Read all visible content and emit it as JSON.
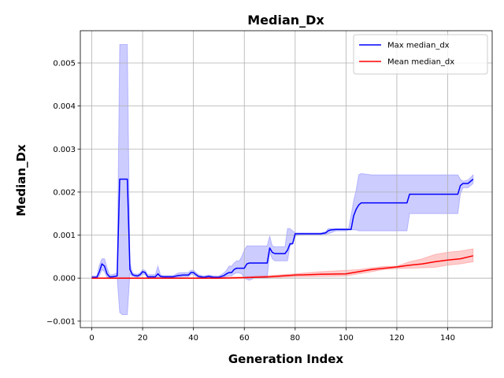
{
  "chart_data": {
    "type": "line",
    "title": "Median_Dx",
    "xlabel": "Generation Index",
    "ylabel": "Median_Dx",
    "xlim": [
      -4.5,
      157.5
    ],
    "ylim": [
      -0.00115,
      0.00575
    ],
    "xticks": [
      0,
      20,
      40,
      60,
      80,
      100,
      120,
      140
    ],
    "xtick_labels": [
      "0",
      "20",
      "40",
      "60",
      "80",
      "100",
      "120",
      "140"
    ],
    "yticks": [
      -0.001,
      0.0,
      0.001,
      0.002,
      0.003,
      0.004,
      0.005
    ],
    "ytick_labels": [
      "−0.001",
      "0.000",
      "0.001",
      "0.002",
      "0.003",
      "0.004",
      "0.005"
    ],
    "grid": true,
    "legend_position": "upper right",
    "series": [
      {
        "name": "Max median_dx",
        "color": "#0000ff",
        "band_color": "#0000ff",
        "x": [
          0,
          2,
          3,
          4,
          5,
          6,
          7,
          8,
          9,
          10,
          11,
          12,
          13,
          14,
          15,
          16,
          17,
          18,
          19,
          20,
          21,
          22,
          23,
          24,
          25,
          26,
          27,
          28,
          29,
          30,
          32,
          34,
          36,
          38,
          39,
          40,
          41,
          42,
          44,
          46,
          48,
          50,
          52,
          53,
          54,
          55,
          56,
          57,
          58,
          59,
          60,
          61,
          62,
          64,
          66,
          68,
          69,
          70,
          71,
          72,
          74,
          76,
          77,
          78,
          79,
          80,
          82,
          85,
          88,
          90,
          92,
          93,
          94,
          96,
          98,
          100,
          101,
          102,
          103,
          104,
          105,
          106,
          110,
          115,
          120,
          123,
          124,
          125,
          126,
          130,
          135,
          140,
          144,
          145,
          146,
          148,
          150
        ],
        "y": [
          2e-05,
          2e-05,
          0.00015,
          0.00033,
          0.00028,
          0.0001,
          3e-05,
          3e-05,
          4e-05,
          5e-05,
          0.0023,
          0.0023,
          0.0023,
          0.0023,
          0.0002,
          8e-05,
          6e-05,
          5e-05,
          8e-05,
          0.00015,
          0.00013,
          3e-05,
          3e-05,
          3e-05,
          3e-05,
          0.0001,
          4e-05,
          3e-05,
          3e-05,
          3e-05,
          3e-05,
          6e-05,
          7e-05,
          7e-05,
          0.00013,
          0.00013,
          8e-05,
          4e-05,
          2e-05,
          4e-05,
          2e-05,
          2e-05,
          6e-05,
          0.0001,
          0.00013,
          0.00013,
          0.0002,
          0.00023,
          0.00023,
          0.00023,
          0.00023,
          0.00033,
          0.00035,
          0.00035,
          0.00035,
          0.00035,
          0.00035,
          0.0007,
          0.0006,
          0.00057,
          0.00057,
          0.00057,
          0.00065,
          0.0008,
          0.0008,
          0.00103,
          0.00103,
          0.00103,
          0.00103,
          0.00103,
          0.00105,
          0.0011,
          0.00112,
          0.00113,
          0.00113,
          0.00113,
          0.00113,
          0.00113,
          0.00145,
          0.0016,
          0.0017,
          0.00175,
          0.00175,
          0.00175,
          0.00175,
          0.00175,
          0.00175,
          0.00195,
          0.00195,
          0.00195,
          0.00195,
          0.00195,
          0.00195,
          0.00215,
          0.0022,
          0.0022,
          0.0023
        ],
        "upper": [
          5e-05,
          5e-05,
          0.0003,
          0.00045,
          0.00045,
          0.00025,
          8e-05,
          8e-05,
          0.0001,
          0.00012,
          0.00543,
          0.00543,
          0.00543,
          0.00543,
          0.00035,
          0.00012,
          0.0001,
          9e-05,
          0.00012,
          0.0002,
          0.00018,
          8e-05,
          8e-05,
          8e-05,
          8e-05,
          0.00028,
          8e-05,
          6e-05,
          6e-05,
          6e-05,
          6e-05,
          0.00012,
          0.00013,
          0.00013,
          0.00018,
          0.00018,
          0.00013,
          8e-05,
          5e-05,
          7e-05,
          5e-05,
          5e-05,
          0.00012,
          0.00018,
          0.00028,
          0.00028,
          0.00035,
          0.0004,
          0.0004,
          0.0005,
          0.00065,
          0.00075,
          0.00075,
          0.00075,
          0.00075,
          0.00075,
          0.00075,
          0.00098,
          0.00075,
          0.00073,
          0.00073,
          0.00073,
          0.00115,
          0.00115,
          0.0011,
          0.00105,
          0.00105,
          0.00105,
          0.00105,
          0.00105,
          0.00108,
          0.00115,
          0.00115,
          0.00115,
          0.00115,
          0.00115,
          0.00115,
          0.00145,
          0.0018,
          0.00205,
          0.0024,
          0.00243,
          0.0024,
          0.0024,
          0.0024,
          0.0024,
          0.0024,
          0.0024,
          0.0024,
          0.0024,
          0.0024,
          0.0024,
          0.0024,
          0.0023,
          0.00225,
          0.00228,
          0.0024
        ],
        "lower": [
          0.0,
          0.0,
          5e-05,
          0.0002,
          0.00015,
          2e-05,
          0.0,
          0.0,
          0.0,
          0.0,
          -0.0008,
          -0.00085,
          -0.00085,
          -0.00085,
          0.0001,
          4e-05,
          3e-05,
          2e-05,
          4e-05,
          0.0001,
          8e-05,
          0.0,
          0.0,
          0.0,
          0.0,
          2e-05,
          0.0,
          0.0,
          0.0,
          0.0,
          0.0,
          2e-05,
          3e-05,
          3e-05,
          8e-05,
          8e-05,
          4e-05,
          1e-05,
          0.0,
          1e-05,
          0.0,
          0.0,
          2e-05,
          4e-05,
          5e-05,
          5e-05,
          0.0001,
          0.00012,
          0.00012,
          0.0001,
          0.0,
          -3e-05,
          -5e-05,
          0.0,
          0.0,
          0.0,
          0.0,
          0.0006,
          0.00045,
          0.0004,
          0.0004,
          0.0004,
          0.0004,
          0.00075,
          0.0008,
          0.00098,
          0.001,
          0.001,
          0.001,
          0.001,
          0.00102,
          0.00103,
          0.00105,
          0.0011,
          0.0011,
          0.0011,
          0.00112,
          0.00112,
          0.00112,
          0.00112,
          0.0011,
          0.0011,
          0.0011,
          0.0011,
          0.0011,
          0.0011,
          0.0011,
          0.0015,
          0.0015,
          0.0015,
          0.0015,
          0.0015,
          0.0015,
          0.00195,
          0.0021,
          0.0021,
          0.0022
        ]
      },
      {
        "name": "Mean median_dx",
        "color": "#ff0000",
        "band_color": "#ff0000",
        "x": [
          0,
          10,
          20,
          30,
          40,
          50,
          60,
          70,
          80,
          90,
          100,
          105,
          110,
          115,
          120,
          125,
          130,
          135,
          140,
          145,
          150
        ],
        "y": [
          0.0,
          0.0,
          0.0,
          0.0,
          0.0,
          0.0,
          1e-05,
          3e-05,
          7e-05,
          9e-05,
          0.0001,
          0.00015,
          0.0002,
          0.00023,
          0.00026,
          0.0003,
          0.00033,
          0.00038,
          0.00042,
          0.00045,
          0.00052
        ],
        "upper": [
          1e-05,
          1e-05,
          1e-05,
          1e-05,
          1e-05,
          2e-05,
          3e-05,
          6e-05,
          0.0001,
          0.00015,
          0.00018,
          0.0002,
          0.00024,
          0.00027,
          0.00028,
          0.00038,
          0.00045,
          0.00055,
          0.0006,
          0.00063,
          0.00068
        ],
        "lower": [
          -1e-05,
          -1e-05,
          -1e-05,
          -1e-05,
          -1e-05,
          -1e-05,
          0.0,
          1e-05,
          3e-05,
          4e-05,
          5e-05,
          0.0001,
          0.00015,
          0.0002,
          0.00022,
          0.00023,
          0.00024,
          0.00025,
          0.0003,
          0.00033,
          0.00038
        ]
      }
    ]
  }
}
